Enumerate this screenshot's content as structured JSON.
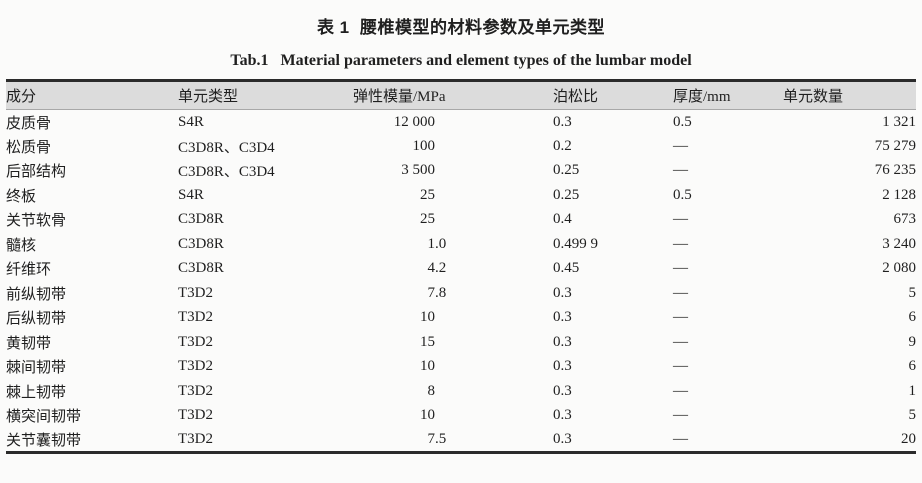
{
  "page": {
    "caption_zh": "表 1  腰椎模型的材料参数及单元类型",
    "caption_en": "Tab.1   Material parameters and element types of the lumbar model"
  },
  "table": {
    "columns": [
      {
        "id": "component",
        "label": "成分"
      },
      {
        "id": "element_type",
        "label": "单元类型"
      },
      {
        "id": "modulus",
        "label": "弹性模量/MPa"
      },
      {
        "id": "poisson",
        "label": "泊松比"
      },
      {
        "id": "thickness",
        "label": "厚度/mm"
      },
      {
        "id": "count",
        "label": "单元数量"
      }
    ],
    "rows": [
      {
        "component": "皮质骨",
        "element_type": "S4R",
        "modulus": "12 000",
        "poisson": "0.3",
        "thickness": "0.5",
        "count": "1 321"
      },
      {
        "component": "松质骨",
        "element_type": "C3D8R、C3D4",
        "modulus": "100",
        "poisson": "0.2",
        "thickness": "—",
        "count": "75 279"
      },
      {
        "component": "后部结构",
        "element_type": "C3D8R、C3D4",
        "modulus": "3 500",
        "poisson": "0.25",
        "thickness": "—",
        "count": "76 235"
      },
      {
        "component": "终板",
        "element_type": "S4R",
        "modulus": "25",
        "poisson": "0.25",
        "thickness": "0.5",
        "count": "2 128"
      },
      {
        "component": "关节软骨",
        "element_type": "C3D8R",
        "modulus": "25",
        "poisson": "0.4",
        "thickness": "—",
        "count": "673"
      },
      {
        "component": "髓核",
        "element_type": "C3D8R",
        "modulus": "1.0",
        "poisson": "0.499 9",
        "thickness": "—",
        "count": "3 240"
      },
      {
        "component": "纤维环",
        "element_type": "C3D8R",
        "modulus": "4.2",
        "poisson": "0.45",
        "thickness": "—",
        "count": "2 080"
      },
      {
        "component": "前纵韧带",
        "element_type": "T3D2",
        "modulus": "7.8",
        "poisson": "0.3",
        "thickness": "—",
        "count": "5"
      },
      {
        "component": "后纵韧带",
        "element_type": "T3D2",
        "modulus": "10",
        "poisson": "0.3",
        "thickness": "—",
        "count": "6"
      },
      {
        "component": "黄韧带",
        "element_type": "T3D2",
        "modulus": "15",
        "poisson": "0.3",
        "thickness": "—",
        "count": "9"
      },
      {
        "component": "棘间韧带",
        "element_type": "T3D2",
        "modulus": "10",
        "poisson": "0.3",
        "thickness": "—",
        "count": "6"
      },
      {
        "component": "棘上韧带",
        "element_type": "T3D2",
        "modulus": "8",
        "poisson": "0.3",
        "thickness": "—",
        "count": "1"
      },
      {
        "component": "横突间韧带",
        "element_type": "T3D2",
        "modulus": "10",
        "poisson": "0.3",
        "thickness": "—",
        "count": "5"
      },
      {
        "component": "关节囊韧带",
        "element_type": "T3D2",
        "modulus": "7.5",
        "poisson": "0.3",
        "thickness": "—",
        "count": "20"
      }
    ]
  },
  "colors": {
    "page_bg": "#fbfbfa",
    "text": "#1f1f1f",
    "header_bg": "#dcdcdc",
    "rule_dark": "#2b2b2b",
    "rule_light": "#a8a8a8"
  }
}
